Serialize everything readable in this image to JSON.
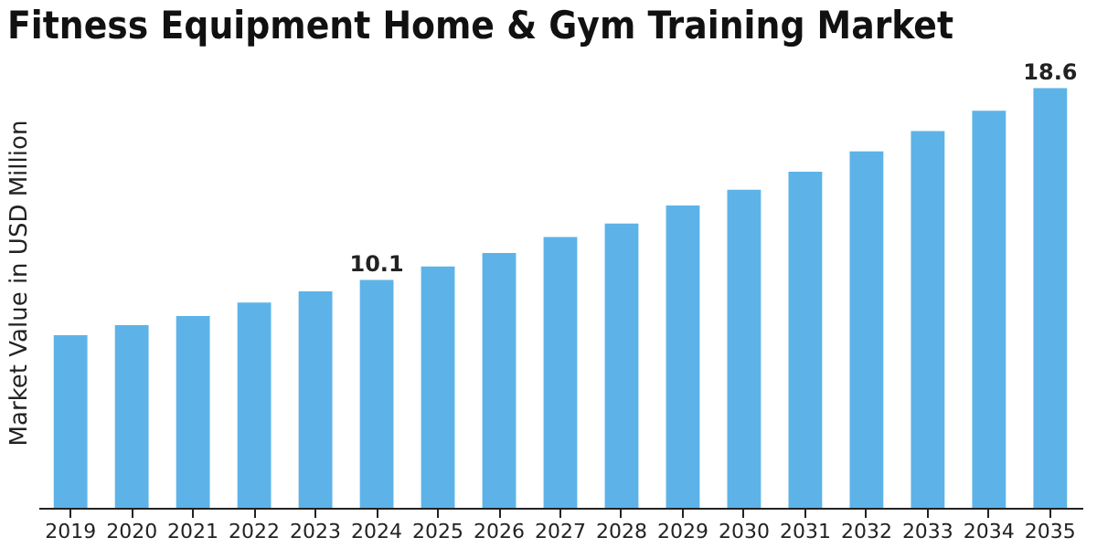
{
  "chart_data": {
    "type": "bar",
    "title": "Fitness Equipment Home & Gym Training Market",
    "ylabel": "Market Value in USD Million",
    "categories": [
      "2019",
      "2020",
      "2021",
      "2022",
      "2023",
      "2024",
      "2025",
      "2026",
      "2027",
      "2028",
      "2029",
      "2030",
      "2031",
      "2032",
      "2033",
      "2034",
      "2035"
    ],
    "values": [
      7.65,
      8.1,
      8.5,
      9.1,
      9.6,
      10.1,
      10.7,
      11.3,
      12.0,
      12.6,
      13.4,
      14.1,
      14.9,
      15.8,
      16.7,
      17.6,
      18.6
    ],
    "value_labels": [
      null,
      null,
      null,
      null,
      null,
      "10.1",
      null,
      null,
      null,
      null,
      null,
      null,
      null,
      null,
      null,
      null,
      "18.6"
    ],
    "color": "#5db3e8"
  }
}
